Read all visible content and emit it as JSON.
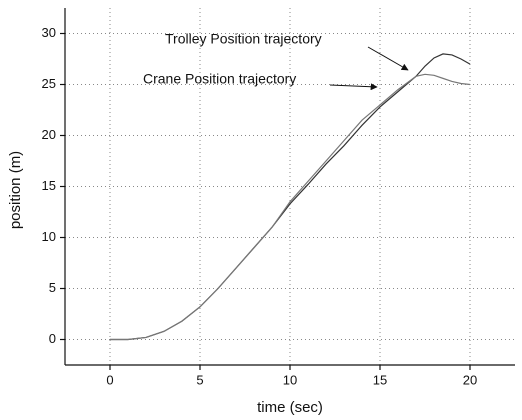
{
  "chart_data": {
    "type": "line",
    "xlabel": "time (sec)",
    "ylabel": "position (m)",
    "x": [
      0,
      1,
      2,
      3,
      4,
      5,
      6,
      7,
      8,
      9,
      10,
      11,
      12,
      13,
      14,
      15,
      16,
      17,
      17.5,
      18,
      18.5,
      19,
      19.5,
      20
    ],
    "series": [
      {
        "name": "Trolley Position trajectory",
        "color": "#333333",
        "values": [
          0,
          0,
          0.2,
          0.8,
          1.8,
          3.2,
          5,
          7,
          9,
          11,
          13.3,
          15.2,
          17.2,
          19,
          21,
          22.8,
          24.3,
          25.8,
          26.8,
          27.6,
          28,
          27.9,
          27.5,
          27
        ]
      },
      {
        "name": "Crane Position trajectory",
        "color": "#777777",
        "values": [
          0,
          0,
          0.2,
          0.8,
          1.8,
          3.2,
          5,
          7,
          9,
          11,
          13.5,
          15.5,
          17.5,
          19.5,
          21.5,
          23,
          24.5,
          25.8,
          26,
          25.9,
          25.6,
          25.3,
          25.1,
          25
        ]
      }
    ],
    "xlim": [
      -2.5,
      22.5
    ],
    "xticks": [
      0,
      5,
      10,
      15,
      20
    ],
    "ylim": [
      -2.5,
      32.5
    ],
    "yticks": [
      0,
      5,
      10,
      15,
      20,
      25,
      30
    ],
    "grid": true
  }
}
